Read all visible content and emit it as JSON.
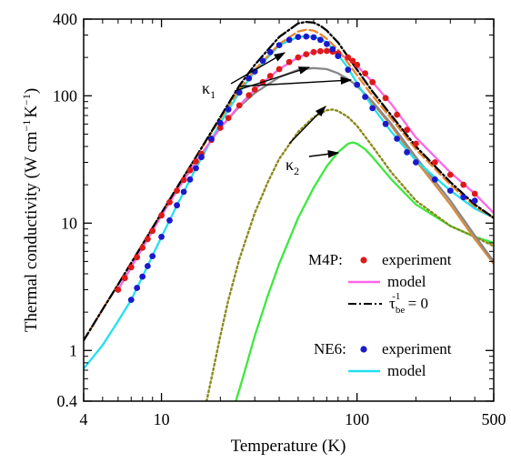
{
  "chart_data": {
    "type": "line",
    "xlabel": "Temperature (K)",
    "ylabel_main": "Thermal conductivity (W cm",
    "ylabel_sup1": "−1",
    "ylabel_mid": "K",
    "ylabel_sup2": "−1",
    "ylabel_end": ")",
    "xscale": "log",
    "yscale": "log",
    "xlim": [
      4,
      500
    ],
    "ylim": [
      0.4,
      400
    ],
    "x_ticks": [
      4,
      10,
      100,
      500
    ],
    "x_tick_labels": [
      "4",
      "10",
      "100",
      "500"
    ],
    "y_ticks": [
      0.4,
      1,
      10,
      100,
      400
    ],
    "y_tick_labels": [
      "0.4",
      "1",
      "10",
      "100",
      "400"
    ],
    "legend": {
      "group1": "M4P:",
      "group2": "NE6:",
      "experiment": "experiment",
      "model": "model",
      "tau_prefix": "τ",
      "tau_sub": "be",
      "tau_sup": "-1",
      "tau_suffix": " = 0"
    },
    "annotations": {
      "kappa1": "κ",
      "kappa1_sub": "1",
      "kappa2": "κ",
      "kappa2_sub": "2"
    },
    "colors": {
      "m4p_experiment": "#dd1a1a",
      "m4p_model": "#ff66e6",
      "ne6_experiment": "#1a1acc",
      "ne6_model": "#22e0f0",
      "tau_zero": "#000000",
      "orange_dashed": "#e8862a",
      "gray": "#888888",
      "orange_solid": "#d98a3c",
      "olive_dotted": "#8a8a1a",
      "green": "#3ee83e"
    },
    "series": [
      {
        "id": "m4p_experiment",
        "style": "points",
        "x": [
          6,
          6.5,
          7,
          7.5,
          8,
          8.5,
          9,
          10,
          11,
          12,
          13,
          14,
          15,
          16,
          18,
          20,
          22,
          25,
          28,
          30,
          33,
          36,
          40,
          45,
          50,
          55,
          60,
          65,
          70,
          75,
          80,
          90,
          95,
          100,
          110,
          120,
          140,
          160,
          180,
          200,
          250,
          300,
          350,
          400
        ],
        "y": [
          3.0,
          3.7,
          4.5,
          5.4,
          6.4,
          7.5,
          8.7,
          11.5,
          14.6,
          18.0,
          21.8,
          26.0,
          30.5,
          35.0,
          45,
          56,
          67,
          84,
          101,
          112,
          128,
          143,
          162,
          184,
          200,
          212,
          220,
          224,
          225,
          222,
          215,
          200,
          188,
          175,
          150,
          128,
          96,
          71,
          54,
          42,
          30,
          24,
          20,
          17
        ]
      },
      {
        "id": "m4p_model",
        "style": "line",
        "x": [
          6,
          7,
          8,
          10,
          12,
          15,
          20,
          25,
          30,
          40,
          50,
          60,
          70,
          75,
          80,
          90,
          100,
          120,
          150,
          200,
          300,
          400,
          500
        ],
        "y": [
          3.0,
          4.5,
          6.4,
          11.5,
          18.0,
          30.5,
          56,
          84,
          112,
          162,
          200,
          222,
          225,
          222,
          215,
          195,
          172,
          128,
          86,
          47,
          25,
          17,
          12
        ]
      },
      {
        "id": "ne6_experiment",
        "style": "points",
        "x": [
          7,
          7.5,
          8,
          8.5,
          9,
          10,
          11,
          12,
          13,
          14,
          15,
          16,
          18,
          20,
          22,
          25,
          28,
          30,
          33,
          36,
          40,
          45,
          50,
          55,
          60,
          65,
          70,
          75,
          80,
          90,
          100,
          110,
          120,
          140,
          160,
          180,
          200,
          250,
          300,
          350,
          400
        ],
        "y": [
          2.5,
          3.1,
          3.8,
          4.6,
          5.5,
          7.8,
          10.5,
          13.8,
          17.6,
          22,
          27,
          33,
          46,
          61,
          78,
          106,
          137,
          155,
          188,
          220,
          250,
          275,
          290,
          292,
          288,
          275,
          255,
          232,
          205,
          160,
          122,
          98,
          80,
          60,
          46,
          36,
          30,
          22,
          18,
          16,
          15
        ]
      },
      {
        "id": "ne6_model",
        "style": "line",
        "x": [
          4,
          5,
          6,
          7,
          8,
          10,
          12,
          15,
          20,
          25,
          30,
          40,
          50,
          55,
          60,
          65,
          70,
          80,
          90,
          100,
          120,
          150,
          200,
          300,
          400,
          500
        ],
        "y": [
          0.72,
          1.1,
          1.7,
          2.5,
          3.8,
          7.8,
          13.8,
          27,
          61,
          106,
          155,
          250,
          290,
          293,
          290,
          280,
          262,
          210,
          165,
          125,
          82,
          52,
          31,
          18,
          13,
          11
        ]
      },
      {
        "id": "tau_zero",
        "style": "dashdot",
        "x": [
          4,
          5,
          6,
          8,
          10,
          12,
          15,
          20,
          25,
          30,
          40,
          50,
          55,
          60,
          65,
          70,
          80,
          100,
          120,
          150,
          200,
          300,
          400,
          500
        ],
        "y": [
          1.2,
          2.1,
          3.3,
          6.8,
          12,
          19,
          33,
          68,
          120,
          175,
          290,
          370,
          380,
          375,
          355,
          325,
          262,
          160,
          108,
          70,
          40,
          21,
          14,
          11
        ]
      },
      {
        "id": "orange_dashed",
        "style": "dashed",
        "x": [
          4,
          5,
          6,
          8,
          10,
          12,
          15,
          20,
          25,
          30,
          40,
          50,
          55,
          60,
          65,
          70,
          80,
          100,
          120,
          150,
          200,
          300,
          400,
          500
        ],
        "y": [
          1.2,
          2.1,
          3.3,
          6.8,
          12,
          19,
          33,
          66,
          112,
          160,
          255,
          320,
          330,
          325,
          305,
          280,
          230,
          145,
          100,
          66,
          38,
          20,
          13.5,
          11
        ]
      },
      {
        "id": "gray",
        "style": "line",
        "x": [
          6,
          8,
          10,
          12,
          15,
          20,
          25,
          30,
          40,
          50,
          60,
          70,
          80,
          90,
          100,
          120,
          150,
          200,
          300,
          400,
          500
        ],
        "y": [
          3.0,
          6.4,
          11.5,
          18,
          30.5,
          56,
          82,
          105,
          140,
          160,
          165,
          162,
          150,
          135,
          120,
          90,
          60,
          33,
          15,
          8,
          5
        ]
      },
      {
        "id": "orange_solid",
        "style": "line",
        "x": [
          100,
          120,
          150,
          200,
          250,
          300,
          400,
          500
        ],
        "y": [
          120,
          88,
          58,
          31,
          20,
          14,
          7.5,
          4.8
        ]
      },
      {
        "id": "olive_dotted",
        "style": "dotted",
        "x": [
          17,
          18,
          20,
          22,
          25,
          30,
          35,
          40,
          50,
          60,
          70,
          75,
          80,
          90,
          100,
          120,
          150,
          200,
          300,
          400,
          500
        ],
        "y": [
          0.4,
          0.6,
          1.3,
          2.5,
          5.2,
          12,
          21,
          32,
          52,
          68,
          77,
          78,
          76,
          68,
          58,
          40,
          25,
          15,
          9.5,
          7.8,
          6.6
        ]
      },
      {
        "id": "green",
        "style": "line",
        "x": [
          24,
          26,
          30,
          35,
          40,
          50,
          60,
          70,
          80,
          90,
          95,
          100,
          110,
          120,
          150,
          200,
          300,
          400,
          500
        ],
        "y": [
          0.4,
          0.6,
          1.3,
          2.7,
          4.8,
          11,
          19,
          28,
          36,
          42,
          43,
          42,
          38,
          33,
          22,
          14,
          9.5,
          7.8,
          7.0
        ]
      }
    ]
  }
}
